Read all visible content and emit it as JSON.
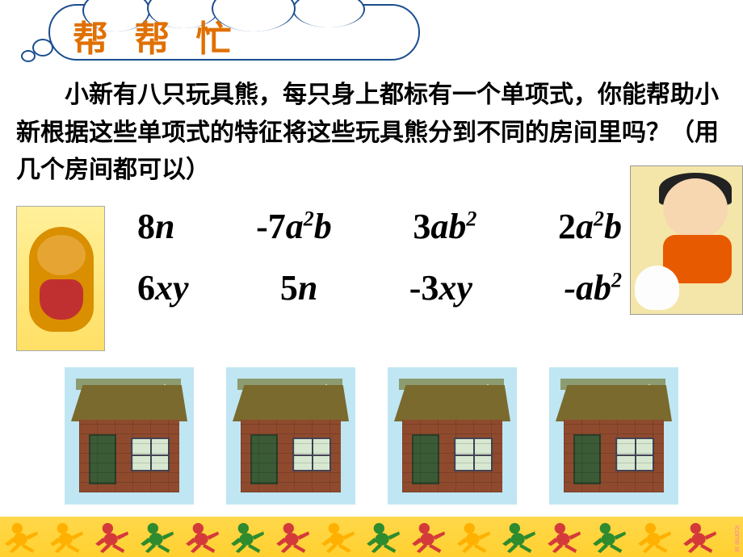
{
  "title": "帮 帮 忙",
  "problem": "小新有八只玩具熊，每只身上都标有一个单项式，你能帮助小新根据这些单项式的特征将这些玩具熊分到不同的房间里吗？（用几个房间都可以）",
  "monomials": {
    "row1": [
      {
        "display": "8n",
        "html": "<span class='upnum'>8</span>n"
      },
      {
        "display": "-7a2b",
        "html": "<span class='upnum'>-7</span>a<sup>2</sup>b"
      },
      {
        "display": "3ab2",
        "html": "<span class='upnum'>3</span>ab<sup>2</sup>"
      },
      {
        "display": "2a2b",
        "html": "<span class='upnum'>2</span>a<sup>2</sup>b"
      }
    ],
    "row2": [
      {
        "display": "6xy",
        "html": "<span class='upnum'>6</span>xy"
      },
      {
        "display": "5n",
        "html": "<span class='upnum'>5</span>n"
      },
      {
        "display": "-3xy",
        "html": "<span class='upnum'>-3</span>xy"
      },
      {
        "display": "-ab2",
        "html": "-ab<sup>2</sup>"
      }
    ]
  },
  "house_count": 4,
  "runner_colors": [
    "#ffb000",
    "#ffb000",
    "#d53a3a",
    "#2e8b2e",
    "#d53a3a",
    "#2e8b2e",
    "#d53a3a",
    "#ffb000",
    "#2e8b2e",
    "#d53a3a",
    "#ffb000",
    "#2e8b2e",
    "#d53a3a",
    "#2e8b2e",
    "#ffb000",
    "#d53a3a"
  ],
  "colors": {
    "title_color": "#e07000",
    "cloud_border": "#1a4d8f",
    "sky_box": "#bfe6f2",
    "wall": "#8f4a2e",
    "roof": "#7a6a2e",
    "strip": "#ffd030"
  },
  "credit": "icome w"
}
